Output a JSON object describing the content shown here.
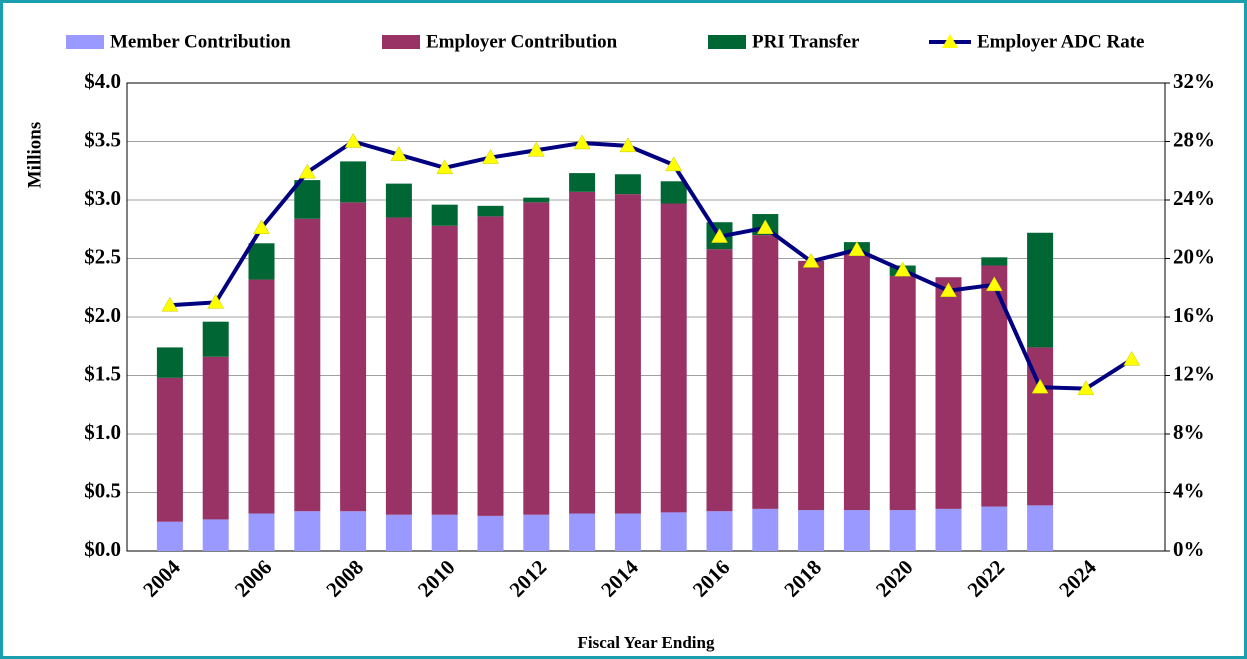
{
  "chart_data": {
    "type": "bar",
    "x_label": "Fiscal Year Ending",
    "y_label": "Millions",
    "categories": [
      "2004",
      null,
      "2006",
      null,
      "2008",
      null,
      "2010",
      null,
      "2012",
      null,
      "2014",
      null,
      "2016",
      null,
      "2018",
      null,
      "2020",
      null,
      "2022",
      null,
      "2024",
      null
    ],
    "series": [
      {
        "name": "Member Contribution",
        "color": "#9999ff",
        "values": [
          0.25,
          0.27,
          0.32,
          0.34,
          0.34,
          0.31,
          0.31,
          0.3,
          0.31,
          0.32,
          0.32,
          0.33,
          0.34,
          0.36,
          0.35,
          0.35,
          0.35,
          0.36,
          0.38,
          0.39,
          null,
          null
        ]
      },
      {
        "name": "Employer Contribution",
        "color": "#993366",
        "values": [
          1.23,
          1.39,
          2.0,
          2.5,
          2.64,
          2.54,
          2.47,
          2.56,
          2.67,
          2.75,
          2.73,
          2.64,
          2.24,
          2.34,
          2.13,
          2.2,
          2.0,
          1.98,
          2.06,
          1.35,
          null,
          null
        ]
      },
      {
        "name": "PRI Transfer",
        "color": "#006633",
        "values": [
          0.26,
          0.3,
          0.31,
          0.33,
          0.35,
          0.29,
          0.18,
          0.09,
          0.04,
          0.16,
          0.17,
          0.19,
          0.23,
          0.18,
          0,
          0.09,
          0.09,
          0,
          0.07,
          0.98,
          null,
          null
        ]
      },
      {
        "name": "Employer ADC Rate",
        "type": "line",
        "axis": "y2",
        "color": "#000080",
        "marker_color": "#ffff00",
        "values": [
          16.8,
          17.0,
          22.1,
          25.9,
          28.0,
          27.1,
          26.2,
          26.9,
          27.4,
          27.9,
          27.7,
          26.4,
          21.5,
          22.1,
          19.8,
          20.6,
          19.2,
          17.8,
          18.2,
          11.2,
          11.1,
          13.1
        ]
      }
    ],
    "ylim": [
      0,
      4
    ],
    "yticks": [
      {
        "value": 0,
        "label": "$0.0"
      },
      {
        "value": 0.5,
        "label": "$0.5"
      },
      {
        "value": 1,
        "label": "$1.0"
      },
      {
        "value": 1.5,
        "label": "$1.5"
      },
      {
        "value": 2,
        "label": "$2.0"
      },
      {
        "value": 2.5,
        "label": "$2.5"
      },
      {
        "value": 3,
        "label": "$3.0"
      },
      {
        "value": 3.5,
        "label": "$3.5"
      },
      {
        "value": 4,
        "label": "$4.0"
      }
    ],
    "y2lim": [
      0,
      32
    ],
    "y2ticks": [
      {
        "value": 0,
        "label": "0%"
      },
      {
        "value": 4,
        "label": "4%"
      },
      {
        "value": 8,
        "label": "8%"
      },
      {
        "value": 12,
        "label": "12%"
      },
      {
        "value": 16,
        "label": "16%"
      },
      {
        "value": 20,
        "label": "20%"
      },
      {
        "value": 24,
        "label": "24%"
      },
      {
        "value": 28,
        "label": "28%"
      },
      {
        "value": 32,
        "label": "32%"
      }
    ],
    "grid": true,
    "legend": "top"
  }
}
